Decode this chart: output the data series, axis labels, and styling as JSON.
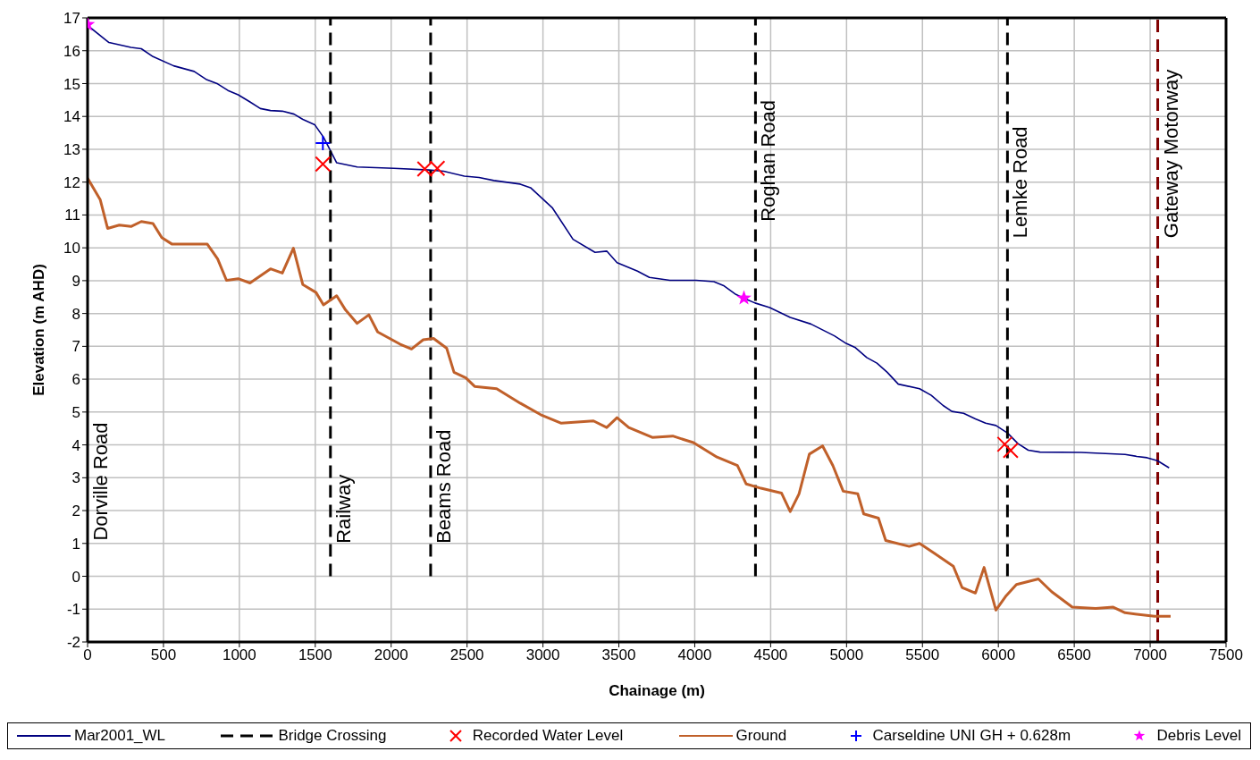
{
  "chart_data": {
    "type": "line",
    "xlabel": "Chainage (m)",
    "ylabel": "Elevation (m AHD)",
    "xlim": [
      0,
      7500
    ],
    "xticks": [
      0,
      500,
      1000,
      1500,
      2000,
      2500,
      3000,
      3500,
      4000,
      4500,
      5000,
      5500,
      6000,
      6500,
      7000,
      7500
    ],
    "ylim": [
      -2,
      17
    ],
    "yticks": [
      -2,
      -1,
      0,
      1,
      2,
      3,
      4,
      5,
      6,
      7,
      8,
      9,
      10,
      11,
      12,
      13,
      14,
      15,
      16,
      17
    ],
    "grid": true,
    "legend": "bottom",
    "series": [
      {
        "name": "Mar2001_WL",
        "color": "#000080",
        "marker": "none",
        "line_style": "solid",
        "x": [
          0,
          141,
          286,
          354,
          431,
          567,
          702,
          780,
          857,
          925,
          992,
          1070,
          1138,
          1205,
          1283,
          1360,
          1418,
          1496,
          1554,
          1602,
          1641,
          1776,
          2018,
          2250,
          2347,
          2482,
          2579,
          2676,
          2850,
          2918,
          3063,
          3198,
          3343,
          3420,
          3488,
          3623,
          3701,
          3836,
          4010,
          4126,
          4194,
          4271,
          4330,
          4397,
          4494,
          4629,
          4765,
          4920,
          4997,
          5055,
          5133,
          5200,
          5268,
          5341,
          5481,
          5558,
          5636,
          5694,
          5771,
          5849,
          5916,
          5984,
          6061,
          6129,
          6197,
          6274,
          6545,
          6835,
          6912,
          6980,
          7048,
          7125
        ],
        "values": [
          16.77,
          16.25,
          16.1,
          16.06,
          15.82,
          15.54,
          15.37,
          15.13,
          14.99,
          14.79,
          14.66,
          14.44,
          14.24,
          14.18,
          14.16,
          14.07,
          13.91,
          13.75,
          13.37,
          12.94,
          12.59,
          12.46,
          12.42,
          12.37,
          12.33,
          12.18,
          12.14,
          12.05,
          11.94,
          11.83,
          11.21,
          10.26,
          9.86,
          9.9,
          9.55,
          9.29,
          9.1,
          9.01,
          9.01,
          8.97,
          8.84,
          8.58,
          8.45,
          8.32,
          8.18,
          7.88,
          7.68,
          7.32,
          7.09,
          6.97,
          6.66,
          6.49,
          6.21,
          5.85,
          5.71,
          5.51,
          5.2,
          5.02,
          4.96,
          4.79,
          4.66,
          4.59,
          4.36,
          4.04,
          3.84,
          3.78,
          3.77,
          3.71,
          3.65,
          3.61,
          3.52,
          3.3
        ]
      },
      {
        "name": "Bridge Crossing",
        "color": "#000000",
        "line_style": "dashed",
        "x": [
          1600,
          1600,
          2260,
          2260,
          4400,
          4400,
          6060,
          6060
        ],
        "values": [
          0,
          17,
          0,
          17,
          0,
          17,
          0,
          17
        ]
      },
      {
        "name": "Recorded Water Level",
        "type": "scatter",
        "color": "#ff0000",
        "marker": "cross",
        "x": [
          1550,
          2221,
          2304,
          6042,
          6081
        ],
        "values": [
          12.55,
          12.4,
          12.42,
          4.02,
          3.83
        ]
      },
      {
        "name": "Ground",
        "color": "#c0602a",
        "marker": "none",
        "line_style": "solid",
        "x": [
          0,
          83,
          132,
          209,
          286,
          354,
          431,
          489,
          557,
          789,
          857,
          915,
          992,
          1070,
          1205,
          1283,
          1356,
          1418,
          1505,
          1554,
          1641,
          1699,
          1776,
          1853,
          1911,
          2057,
          2134,
          2211,
          2279,
          2366,
          2414,
          2492,
          2550,
          2695,
          2850,
          2985,
          3121,
          3333,
          3420,
          3488,
          3565,
          3720,
          3855,
          3991,
          4146,
          4281,
          4339,
          4436,
          4572,
          4629,
          4687,
          4755,
          4842,
          4910,
          4978,
          5074,
          5113,
          5210,
          5258,
          5413,
          5481,
          5578,
          5703,
          5761,
          5849,
          5906,
          5984,
          6052,
          6119,
          6264,
          6351,
          6487,
          6641,
          6757,
          6835,
          7029,
          7135
        ],
        "values": [
          12.12,
          11.47,
          10.59,
          10.69,
          10.65,
          10.8,
          10.74,
          10.31,
          10.11,
          10.11,
          9.66,
          9.01,
          9.06,
          8.93,
          9.36,
          9.23,
          9.99,
          8.88,
          8.64,
          8.26,
          8.54,
          8.11,
          7.7,
          7.96,
          7.44,
          7.07,
          6.92,
          7.2,
          7.24,
          6.94,
          6.21,
          6.04,
          5.78,
          5.71,
          5.27,
          4.92,
          4.66,
          4.73,
          4.53,
          4.83,
          4.53,
          4.23,
          4.27,
          4.07,
          3.63,
          3.37,
          2.81,
          2.68,
          2.53,
          1.97,
          2.51,
          3.72,
          3.97,
          3.37,
          2.59,
          2.51,
          1.9,
          1.77,
          1.09,
          0.91,
          1.0,
          0.7,
          0.31,
          -0.34,
          -0.51,
          0.27,
          -1.03,
          -0.59,
          -0.25,
          -0.08,
          -0.47,
          -0.94,
          -0.98,
          -0.94,
          -1.11,
          -1.22,
          -1.22
        ]
      },
      {
        "name": "Carseldine UNI GH + 0.628m",
        "type": "scatter",
        "color": "#0000ff",
        "marker": "plus",
        "x": [
          1550
        ],
        "values": [
          13.19
        ]
      },
      {
        "name": "Debris Level",
        "type": "scatter",
        "color": "#ff00ff",
        "marker": "star",
        "x": [
          0,
          4324
        ],
        "values": [
          16.8,
          8.47
        ]
      }
    ],
    "ref_lines": [
      {
        "axis": "x",
        "value": 7050,
        "color": "#800000",
        "line_style": "dashed"
      }
    ],
    "annotations": [
      "Dorville Road",
      {
        "text": "Railway",
        "x": 1600,
        "y": 1
      },
      {
        "text": "Beams Road",
        "x": 2260,
        "y": 1
      },
      {
        "text": "Roghan Road",
        "x": 4400,
        "y": 10.8
      },
      {
        "text": "Lemke Road",
        "x": 6060,
        "y": 10.3
      },
      {
        "text": "Gateway Motorway",
        "x": 7050,
        "y": 10.3
      }
    ]
  }
}
